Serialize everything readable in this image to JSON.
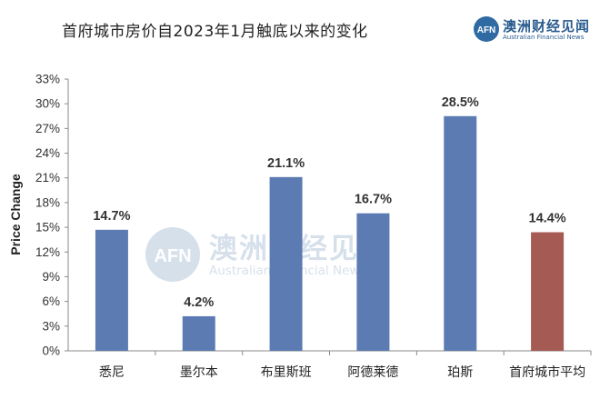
{
  "chart_data": {
    "type": "bar",
    "title": "首府城市房价自2023年1月触底以来的变化",
    "xlabel": "",
    "ylabel": "Price Change",
    "ylim": [
      0,
      33
    ],
    "yticks": [
      "0%",
      "3%",
      "6%",
      "9%",
      "12%",
      "15%",
      "18%",
      "21%",
      "24%",
      "27%",
      "30%",
      "33%"
    ],
    "grid": false,
    "categories": [
      "悉尼",
      "墨尔本",
      "布里斯班",
      "阿德莱德",
      "珀斯",
      "首府城市平均"
    ],
    "values": [
      14.7,
      4.2,
      21.1,
      16.7,
      28.5,
      14.4
    ],
    "data_labels": [
      "14.7%",
      "4.2%",
      "21.1%",
      "16.7%",
      "28.5%",
      "14.4%"
    ],
    "colors": [
      "#5b7bb2",
      "#5b7bb2",
      "#5b7bb2",
      "#5b7bb2",
      "#5b7bb2",
      "#a55a54"
    ]
  },
  "brand": {
    "logo_text": "AFN",
    "name": "澳洲财经见闻",
    "subtitle": "Australian Financial News"
  },
  "watermark": {
    "logo_text": "AFN",
    "name": "澳洲财经见闻",
    "subtitle": "Australian Financial News"
  }
}
